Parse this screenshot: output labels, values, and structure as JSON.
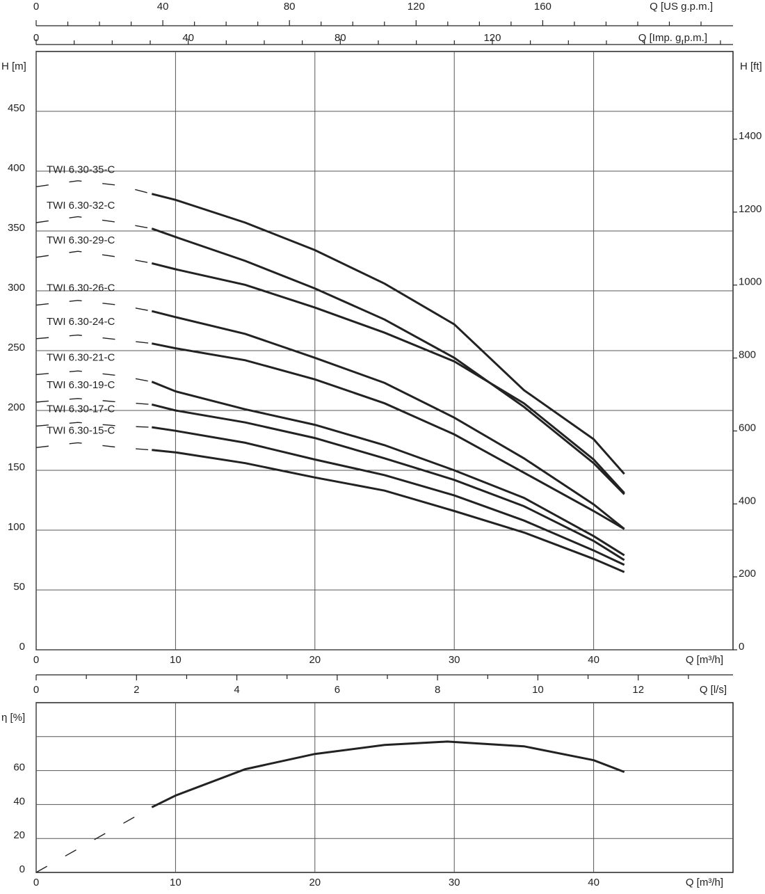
{
  "chart_data": [
    {
      "type": "line",
      "x": [
        8.3,
        10,
        15,
        20,
        25,
        30,
        35,
        40,
        42.2
      ],
      "x_dashed": [
        0,
        3,
        6,
        8.3
      ],
      "xlim": [
        0,
        50
      ],
      "xticks": [
        0,
        10,
        20,
        30,
        40
      ],
      "xlabel": "Q [m³/h]",
      "ylim": [
        0,
        500
      ],
      "yticks": [
        0,
        50,
        100,
        150,
        200,
        250,
        300,
        350,
        400,
        450
      ],
      "ylabel": "H [m]",
      "y2lim": [
        0,
        1640.4
      ],
      "y2ticks": [
        0,
        200,
        400,
        600,
        800,
        1000,
        1200,
        1400
      ],
      "y2label": "H [ft]",
      "grid": true,
      "top_axes": [
        {
          "label": "Q [US g.p.m.]",
          "lim": [
            0,
            220.1
          ],
          "ticks": [
            0,
            40,
            80,
            120,
            160
          ],
          "minor_ticks": [
            10,
            20,
            30,
            50,
            60,
            70,
            90,
            100,
            110,
            130,
            140,
            150,
            170,
            180,
            190,
            200,
            210
          ]
        },
        {
          "label": "Q [Imp. g.p.m.]",
          "lim": [
            0,
            183.3
          ],
          "ticks": [
            0,
            40,
            80,
            120
          ],
          "minor_ticks": [
            10,
            20,
            30,
            50,
            60,
            70,
            90,
            100,
            110,
            130,
            140,
            150,
            160,
            170,
            180
          ]
        }
      ],
      "bottom_axis": {
        "label": "Q [l/s]",
        "lim": [
          0,
          13.889
        ],
        "ticks": [
          0,
          2,
          4,
          6,
          8,
          10,
          12
        ],
        "minor_ticks": [
          1,
          3,
          5,
          7,
          9,
          11,
          13
        ]
      },
      "series": [
        {
          "name": "TWI 6.30-35-C",
          "color": "#222222",
          "values": [
            381,
            376,
            357,
            334,
            306,
            272,
            217,
            176,
            147
          ],
          "dashed_values": [
            387,
            392,
            388,
            381
          ]
        },
        {
          "name": "TWI 6.30-32-C",
          "color": "#222222",
          "values": [
            352,
            345,
            325,
            302,
            276,
            244,
            203,
            156,
            130
          ],
          "dashed_values": [
            357,
            362,
            357,
            352
          ]
        },
        {
          "name": "TWI 6.30-29-C",
          "color": "#222222",
          "values": [
            323,
            318,
            305,
            286,
            265,
            241,
            206,
            159,
            131
          ],
          "dashed_values": [
            328,
            333,
            328,
            323
          ]
        },
        {
          "name": "TWI 6.30-26-C",
          "color": "#222222",
          "values": [
            283,
            278,
            264,
            244,
            223,
            194,
            160,
            121.5,
            101
          ],
          "dashed_values": [
            288,
            292,
            288,
            283
          ]
        },
        {
          "name": "TWI 6.30-24-C",
          "color": "#222222",
          "values": [
            256,
            252,
            242,
            226,
            206,
            180,
            148,
            116,
            101
          ],
          "dashed_values": [
            260,
            263,
            259,
            256
          ]
        },
        {
          "name": "TWI 6.30-21-C",
          "color": "#222222",
          "values": [
            224,
            216,
            201,
            188,
            171,
            150,
            127,
            95,
            79
          ],
          "dashed_values": [
            230,
            233,
            229,
            224
          ]
        },
        {
          "name": "TWI 6.30-19-C",
          "color": "#222222",
          "values": [
            205,
            200,
            190,
            177,
            160,
            142,
            120,
            91,
            75
          ],
          "dashed_values": [
            207,
            210,
            207,
            205
          ]
        },
        {
          "name": "TWI 6.30-17-C",
          "color": "#222222",
          "values": [
            186,
            183,
            173,
            159,
            146,
            129,
            108,
            83,
            71
          ],
          "dashed_values": [
            187,
            190,
            187,
            186
          ]
        },
        {
          "name": "TWI 6.30-15-C",
          "color": "#222222",
          "values": [
            167,
            165,
            156,
            144,
            133,
            116,
            98,
            76,
            65
          ],
          "dashed_values": [
            169,
            173,
            169,
            167
          ]
        }
      ]
    },
    {
      "type": "line",
      "x": [
        8.3,
        10,
        15,
        20,
        25,
        29.5,
        35,
        40,
        42.2
      ],
      "x_dashed": [
        0,
        8.3
      ],
      "xlim": [
        0,
        50
      ],
      "xticks": [
        0,
        10,
        20,
        30,
        40
      ],
      "xlabel": "Q [m³/h]",
      "ylim": [
        0,
        100
      ],
      "yticks": [
        0,
        20,
        40,
        60
      ],
      "ylabel": "η [%]",
      "grid": true,
      "grid_lines": [
        20,
        40,
        60,
        80
      ],
      "series": [
        {
          "color": "#222222",
          "values": [
            38.4,
            45.3,
            60.8,
            69.8,
            75.1,
            77.1,
            74.3,
            66.1,
            59.2
          ],
          "dashed_values": [
            0,
            38.4
          ]
        }
      ]
    }
  ]
}
